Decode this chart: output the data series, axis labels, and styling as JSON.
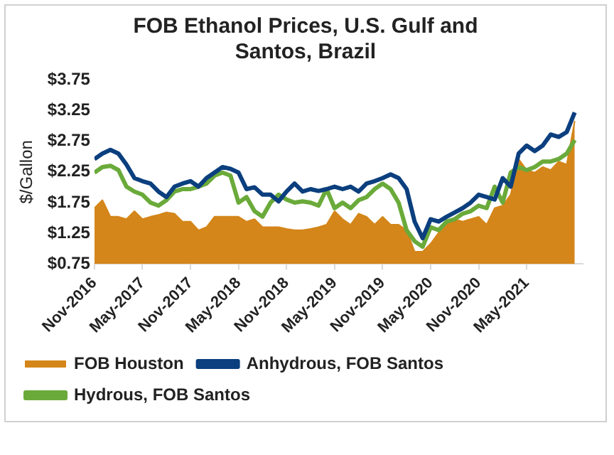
{
  "chart_data": {
    "type": "line",
    "title": "FOB Ethanol Prices, U.S. Gulf and Santos, Brazil",
    "ylabel": "$/Gallon",
    "x": [
      "2016-11",
      "2016-12",
      "2017-01",
      "2017-02",
      "2017-03",
      "2017-04",
      "2017-05",
      "2017-06",
      "2017-07",
      "2017-08",
      "2017-09",
      "2017-10",
      "2017-11",
      "2017-12",
      "2018-01",
      "2018-02",
      "2018-03",
      "2018-04",
      "2018-05",
      "2018-06",
      "2018-07",
      "2018-08",
      "2018-09",
      "2018-10",
      "2018-11",
      "2018-12",
      "2019-01",
      "2019-02",
      "2019-03",
      "2019-04",
      "2019-05",
      "2019-06",
      "2019-07",
      "2019-08",
      "2019-09",
      "2019-10",
      "2019-11",
      "2019-12",
      "2020-01",
      "2020-02",
      "2020-03",
      "2020-04",
      "2020-05",
      "2020-06",
      "2020-07",
      "2020-08",
      "2020-09",
      "2020-10",
      "2020-11",
      "2020-12",
      "2021-01",
      "2021-02",
      "2021-03",
      "2021-04",
      "2021-05",
      "2021-06",
      "2021-07",
      "2021-08",
      "2021-09",
      "2021-10",
      "2021-11"
    ],
    "series": [
      {
        "name": "FOB Houston",
        "type": "area",
        "color": "#d4861a",
        "values": [
          1.66,
          1.79,
          1.52,
          1.52,
          1.48,
          1.61,
          1.48,
          1.52,
          1.55,
          1.59,
          1.57,
          1.44,
          1.44,
          1.3,
          1.35,
          1.52,
          1.52,
          1.52,
          1.52,
          1.44,
          1.48,
          1.35,
          1.35,
          1.35,
          1.32,
          1.3,
          1.3,
          1.32,
          1.35,
          1.39,
          1.61,
          1.48,
          1.39,
          1.57,
          1.52,
          1.39,
          1.52,
          1.39,
          1.39,
          1.3,
          0.95,
          0.95,
          1.08,
          1.26,
          1.39,
          1.48,
          1.44,
          1.48,
          1.52,
          1.39,
          1.66,
          1.7,
          1.88,
          2.46,
          2.28,
          2.24,
          2.33,
          2.28,
          2.42,
          2.37,
          3.08
        ]
      },
      {
        "name": "Anhydrous, FOB Santos",
        "type": "line",
        "color": "#0b3f7e",
        "values": [
          2.46,
          2.55,
          2.61,
          2.55,
          2.37,
          2.15,
          2.1,
          2.06,
          1.93,
          1.84,
          2.01,
          2.06,
          2.1,
          2.01,
          2.15,
          2.24,
          2.33,
          2.3,
          2.24,
          1.97,
          2.0,
          1.88,
          1.88,
          1.77,
          1.93,
          2.06,
          1.93,
          1.97,
          1.94,
          1.97,
          2.01,
          1.97,
          2.01,
          1.93,
          2.06,
          2.1,
          2.15,
          2.21,
          2.15,
          1.97,
          1.44,
          1.17,
          1.48,
          1.44,
          1.52,
          1.59,
          1.66,
          1.75,
          1.88,
          1.84,
          1.8,
          2.15,
          2.01,
          2.55,
          2.68,
          2.59,
          2.68,
          2.86,
          2.82,
          2.9,
          3.22
        ]
      },
      {
        "name": "Hydrous, FOB Santos",
        "type": "line",
        "color": "#6aaa3a",
        "values": [
          2.24,
          2.33,
          2.35,
          2.28,
          2.01,
          1.93,
          1.88,
          1.75,
          1.7,
          1.79,
          1.93,
          1.97,
          1.97,
          2.01,
          2.06,
          2.19,
          2.24,
          2.19,
          1.75,
          1.84,
          1.61,
          1.52,
          1.75,
          1.88,
          1.8,
          1.75,
          1.77,
          1.75,
          1.7,
          1.97,
          1.66,
          1.75,
          1.66,
          1.79,
          1.84,
          1.97,
          2.06,
          1.97,
          1.75,
          1.3,
          1.12,
          1.03,
          1.35,
          1.3,
          1.44,
          1.48,
          1.57,
          1.61,
          1.7,
          1.66,
          2.01,
          1.75,
          2.24,
          2.33,
          2.28,
          2.33,
          2.42,
          2.42,
          2.46,
          2.55,
          2.77
        ]
      }
    ],
    "xlim": [
      "2016-11",
      "2021-12"
    ],
    "xticks": [
      {
        "value": "2016-11",
        "label": "Nov-2016"
      },
      {
        "value": "2017-05",
        "label": "May-2017"
      },
      {
        "value": "2017-11",
        "label": "Nov-2017"
      },
      {
        "value": "2018-05",
        "label": "May-2018"
      },
      {
        "value": "2018-11",
        "label": "Nov-2018"
      },
      {
        "value": "2019-05",
        "label": "May-2019"
      },
      {
        "value": "2019-11",
        "label": "Nov-2019"
      },
      {
        "value": "2020-05",
        "label": "May-2020"
      },
      {
        "value": "2020-11",
        "label": "Nov-2020"
      },
      {
        "value": "2021-05",
        "label": "May-2021"
      }
    ],
    "ylim": [
      0.75,
      3.75
    ],
    "yticks": [
      {
        "value": 0.75,
        "label": "$0.75"
      },
      {
        "value": 1.25,
        "label": "$1.25"
      },
      {
        "value": 1.75,
        "label": "$1.75"
      },
      {
        "value": 2.25,
        "label": "$2.25"
      },
      {
        "value": 2.75,
        "label": "$2.75"
      },
      {
        "value": 3.25,
        "label": "$3.25"
      },
      {
        "value": 3.75,
        "label": "$3.75"
      }
    ],
    "grid": false,
    "legend": "bottom",
    "marker": "none",
    "line_style": "solid"
  }
}
